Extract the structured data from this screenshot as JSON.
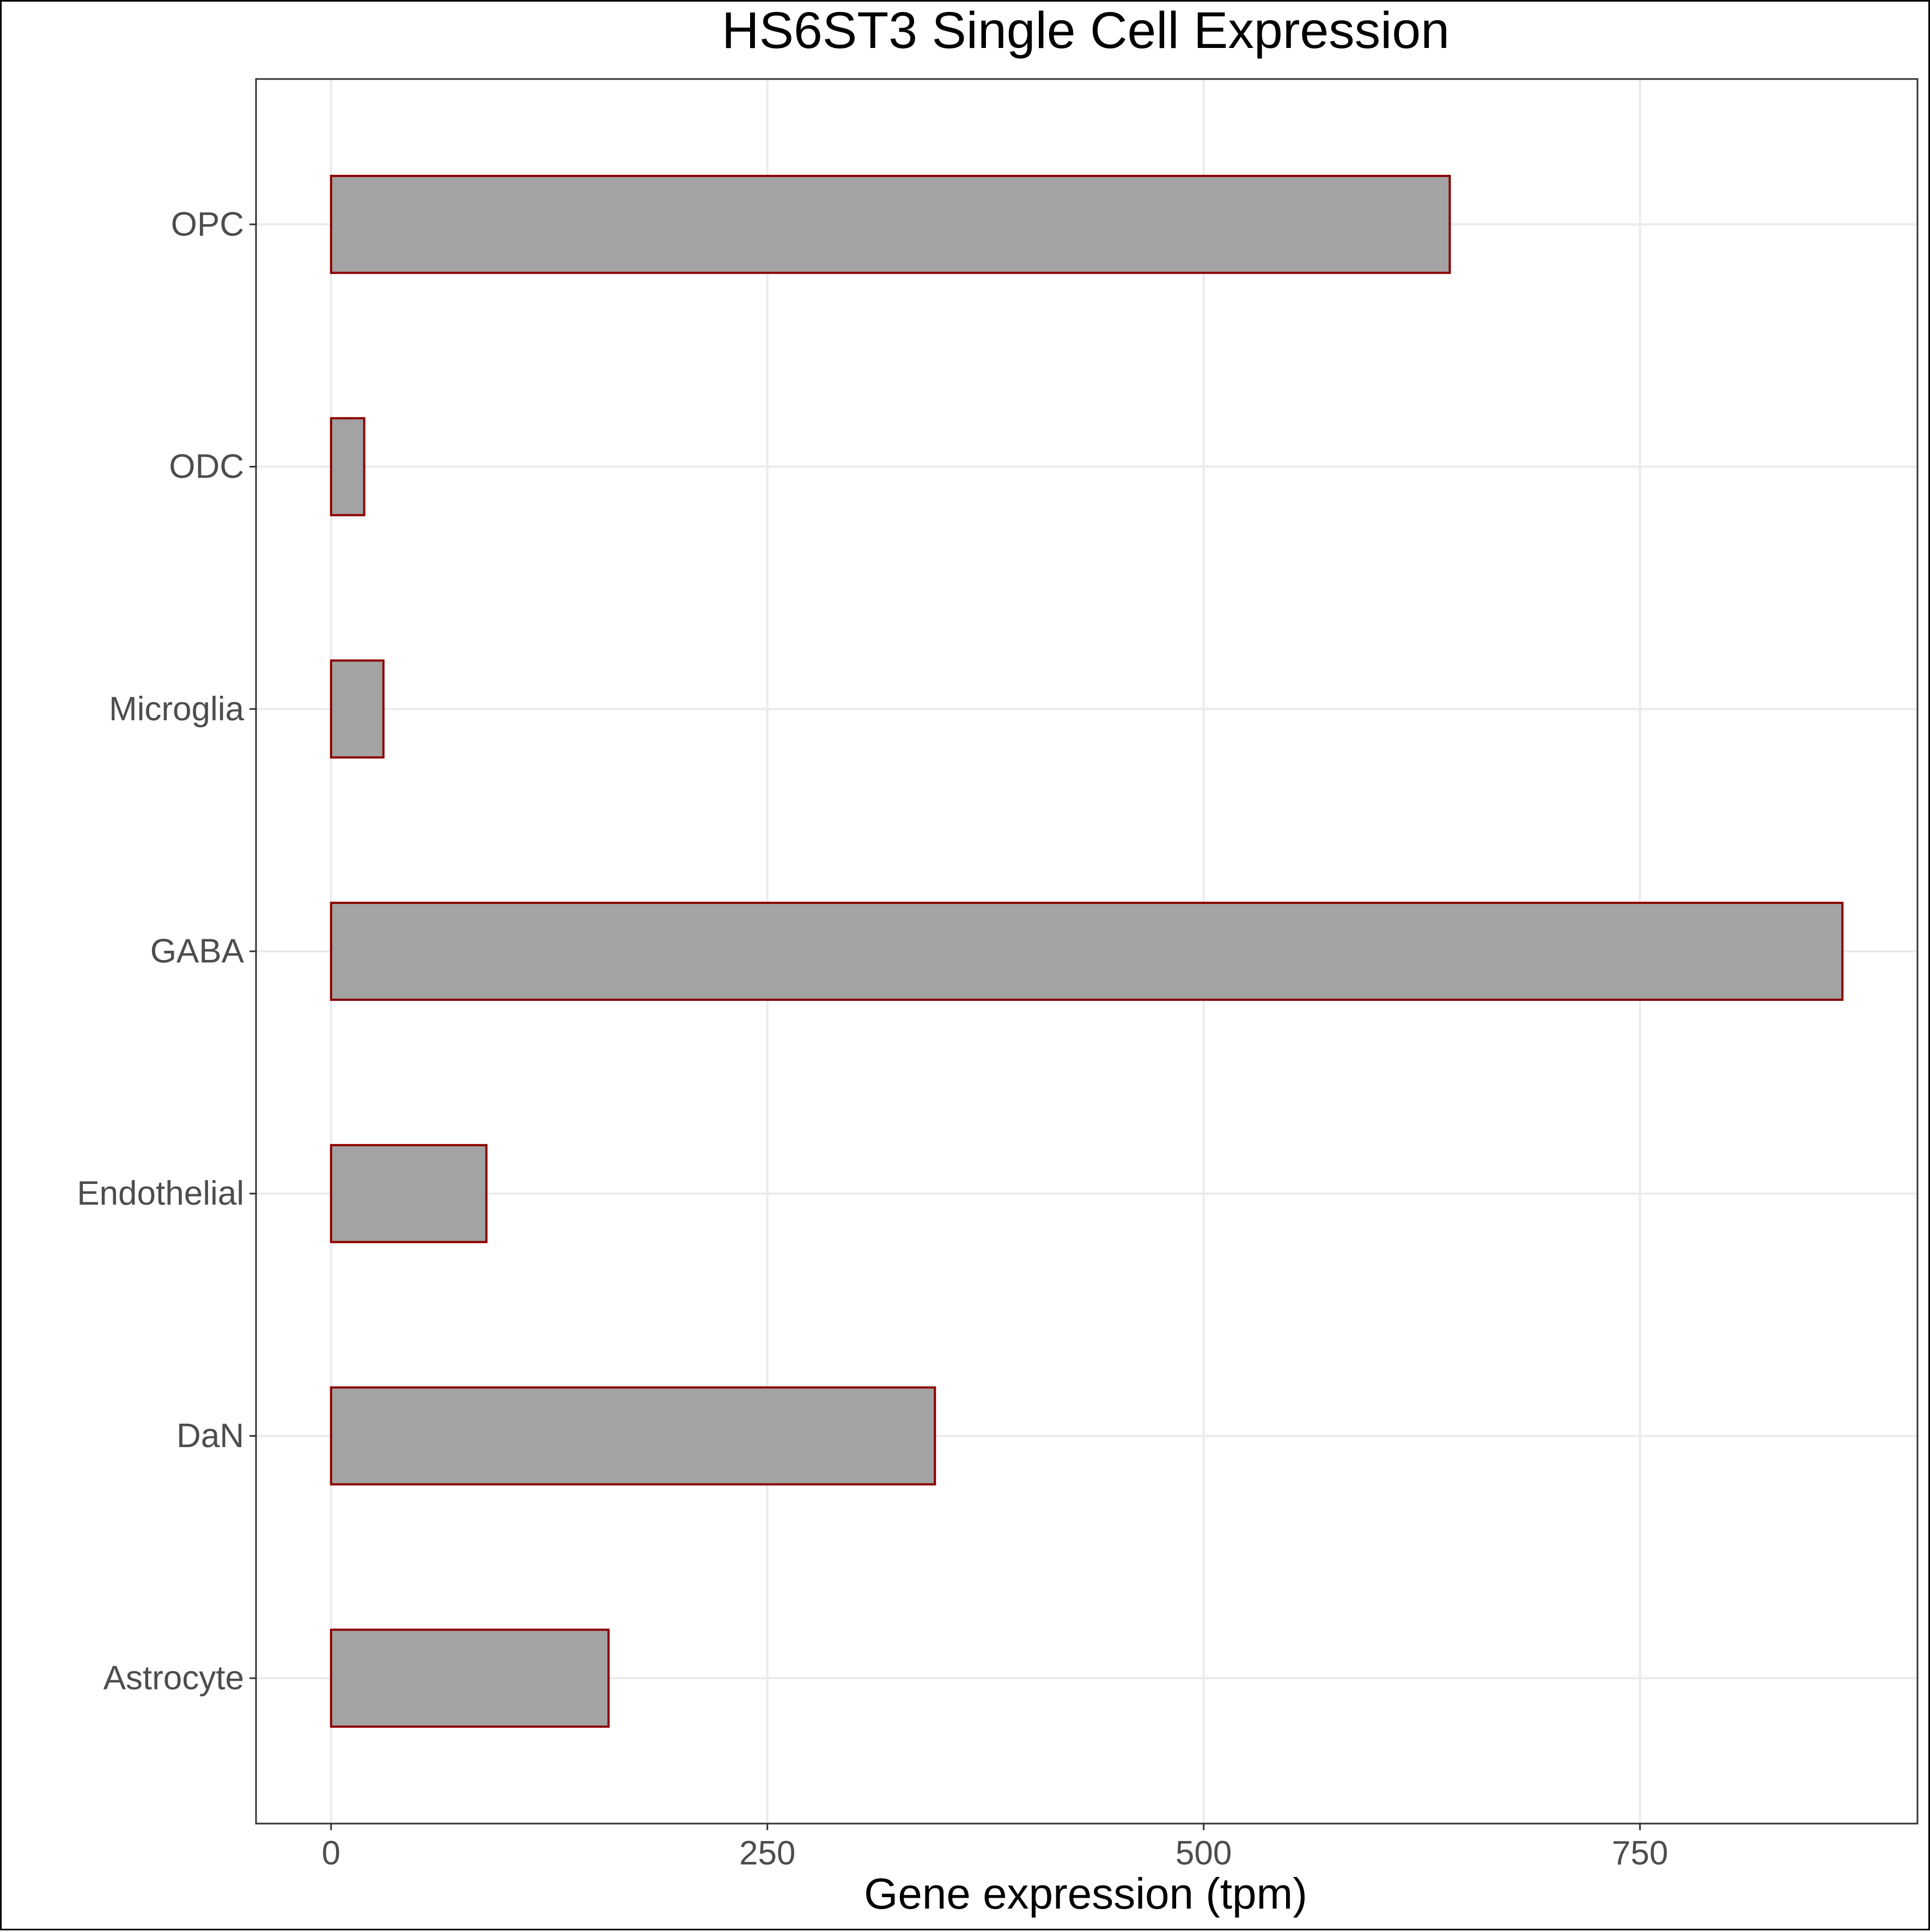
{
  "chart_data": {
    "type": "bar",
    "orientation": "horizontal",
    "title": "HS6ST3 Single Cell Expression",
    "xlabel": "Gene expression (tpm)",
    "ylabel": "",
    "categories": [
      "Astrocyte",
      "DaN",
      "Endothelial",
      "GABA",
      "Microglia",
      "ODC",
      "OPC"
    ],
    "values": [
      159,
      346,
      89,
      866,
      30,
      19,
      641
    ],
    "xlim": [
      -43,
      909
    ],
    "xticks": [
      0,
      250,
      500,
      750
    ],
    "xtick_labels": [
      "0",
      "250",
      "500",
      "750"
    ],
    "grid": true,
    "legend": "none",
    "colors": {
      "bar_fill": "#a3a3a3",
      "bar_stroke": "#8b0000",
      "grid": "#ebebeb",
      "panel_border": "#333333",
      "tick_label": "#4d4d4d",
      "title": "#000000"
    }
  }
}
